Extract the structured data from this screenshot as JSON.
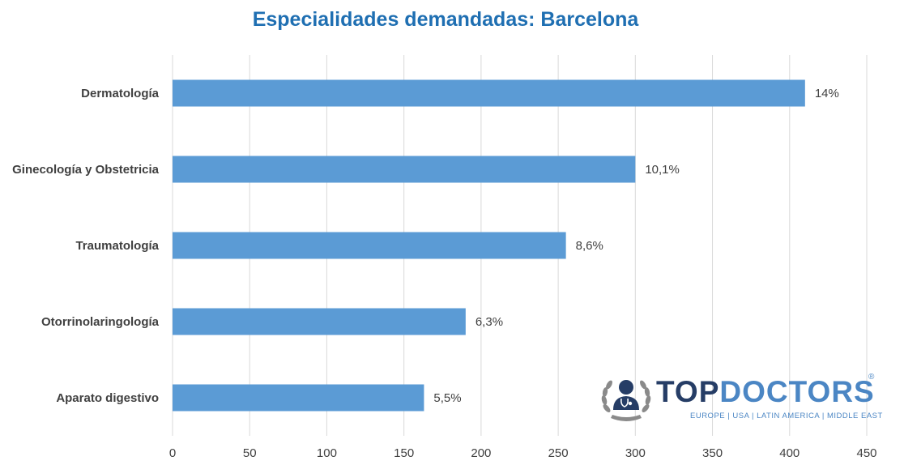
{
  "chart_data": {
    "type": "bar",
    "orientation": "horizontal",
    "title": "Especialidades demandadas: Barcelona",
    "categories": [
      "Dermatología",
      "Ginecología y Obstetricia",
      "Traumatología",
      "Otorrinolaringología",
      "Aparato digestivo"
    ],
    "values": [
      410,
      300,
      255,
      190,
      163
    ],
    "data_labels": [
      "14%",
      "10,1%",
      "8,6%",
      "6,3%",
      "5,5%"
    ],
    "xlim": [
      0,
      450
    ],
    "xticks": [
      "0",
      "50",
      "100",
      "150",
      "200",
      "250",
      "300",
      "350",
      "400",
      "450"
    ],
    "grid": "vertical",
    "legend": "none",
    "bar_color": "#5b9bd5",
    "grid_color": "#d9d9d9"
  },
  "logo": {
    "top": "TOP",
    "doctors": "DOCTORS",
    "registered": "®",
    "tagline": "EUROPE  |  USA  |  LATIN AMERICA  |  MIDDLE EAST",
    "emblem_icon": "doctor-laurel-emblem"
  }
}
